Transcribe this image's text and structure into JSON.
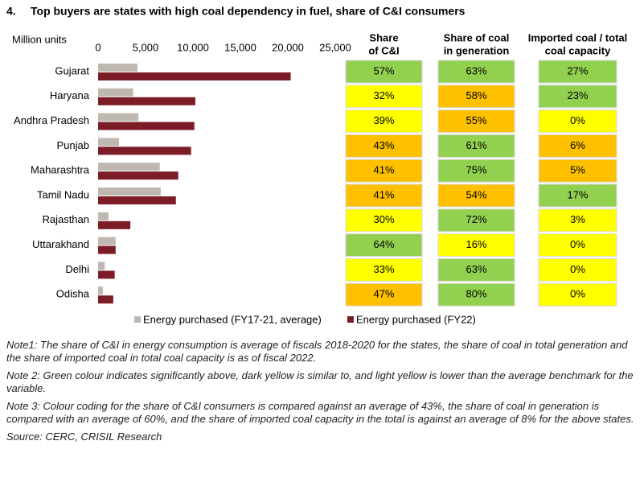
{
  "chart_data": {
    "type": "bar",
    "orientation": "horizontal",
    "number": "4.",
    "title": "Top buyers are states with high coal dependency in fuel, share of C&I consumers",
    "x_label": "Million units",
    "categories": [
      "Gujarat",
      "Haryana",
      "Andhra Pradesh",
      "Punjab",
      "Maharashtra",
      "Tamil Nadu",
      "Rajasthan",
      "Uttarakhand",
      "Delhi",
      "Odisha"
    ],
    "series": [
      {
        "name": "Energy purchased (FY17-21, average)",
        "color": "#bfb8b0",
        "values": [
          4150,
          3700,
          4250,
          2200,
          6500,
          6600,
          1100,
          1850,
          700,
          500
        ]
      },
      {
        "name": "Energy purchased (FY22)",
        "color": "#7b1c27",
        "values": [
          20300,
          10250,
          10150,
          9800,
          8450,
          8200,
          3400,
          1850,
          1750,
          1600
        ]
      }
    ],
    "xlim": [
      0,
      25000
    ],
    "xticks": [
      0,
      {
        "value": 5000,
        "label": "5,000"
      },
      {
        "value": 10000,
        "label": "10,000"
      },
      {
        "value": 15000,
        "label": "15,000"
      },
      {
        "value": 20000,
        "label": "20,000"
      },
      {
        "value": 25000,
        "label": "25,000"
      }
    ],
    "grid": false,
    "legend": "bottom"
  },
  "table": {
    "headers": [
      [
        "Share",
        "of C&I"
      ],
      [
        "Share of coal",
        "in generation"
      ],
      [
        "Imported coal / total",
        "coal capacity"
      ]
    ],
    "rows": [
      [
        {
          "text": "57%",
          "color": "#92d050"
        },
        {
          "text": "63%",
          "color": "#92d050"
        },
        {
          "text": "27%",
          "color": "#92d050"
        }
      ],
      [
        {
          "text": "32%",
          "color": "#ffff00"
        },
        {
          "text": "58%",
          "color": "#ffc000"
        },
        {
          "text": "23%",
          "color": "#92d050"
        }
      ],
      [
        {
          "text": "39%",
          "color": "#ffff00"
        },
        {
          "text": "55%",
          "color": "#ffc000"
        },
        {
          "text": "0%",
          "color": "#ffff00"
        }
      ],
      [
        {
          "text": "43%",
          "color": "#ffc000"
        },
        {
          "text": "61%",
          "color": "#92d050"
        },
        {
          "text": "6%",
          "color": "#ffc000"
        }
      ],
      [
        {
          "text": "41%",
          "color": "#ffc000"
        },
        {
          "text": "75%",
          "color": "#92d050"
        },
        {
          "text": "5%",
          "color": "#ffc000"
        }
      ],
      [
        {
          "text": "41%",
          "color": "#ffc000"
        },
        {
          "text": "54%",
          "color": "#ffc000"
        },
        {
          "text": "17%",
          "color": "#92d050"
        }
      ],
      [
        {
          "text": "30%",
          "color": "#ffff00"
        },
        {
          "text": "72%",
          "color": "#92d050"
        },
        {
          "text": "3%",
          "color": "#ffff00"
        }
      ],
      [
        {
          "text": "64%",
          "color": "#92d050"
        },
        {
          "text": "16%",
          "color": "#ffff00"
        },
        {
          "text": "0%",
          "color": "#ffff00"
        }
      ],
      [
        {
          "text": "33%",
          "color": "#ffff00"
        },
        {
          "text": "63%",
          "color": "#92d050"
        },
        {
          "text": "0%",
          "color": "#ffff00"
        }
      ],
      [
        {
          "text": "47%",
          "color": "#ffc000"
        },
        {
          "text": "80%",
          "color": "#92d050"
        },
        {
          "text": "0%",
          "color": "#ffff00"
        }
      ]
    ]
  },
  "notes": [
    "Note1: The share of C&I in energy consumption is average of fiscals 2018-2020 for the states, the share of coal in total generation and the share of imported coal in total coal capacity is as of fiscal 2022.",
    "Note 2: Green colour indicates significantly above, dark yellow is similar to, and light yellow is lower than the average benchmark for the variable.",
    "Note 3: Colour coding for the share of C&I consumers is compared against an average of 43%, the share of coal in generation is compared with an average of 60%, and the share of imported coal capacity in the total is against an average of 8% for the above states.",
    "Source: CERC, CRISIL Research"
  ]
}
